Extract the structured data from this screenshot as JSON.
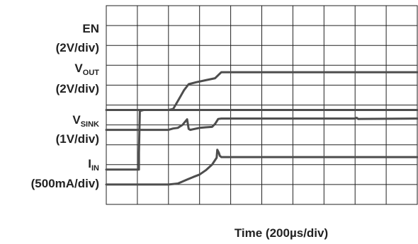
{
  "chart_data": {
    "type": "line",
    "xlabel": "Time (200µs/div)",
    "x_divisions": 10,
    "y_divisions": 10,
    "grid": true,
    "trace_color": "#4d4d4d",
    "grid_color": "#222222",
    "series": [
      {
        "name": "EN",
        "scale": "(2V/div)",
        "unit": "div",
        "points": [
          [
            0,
            1.75
          ],
          [
            1.05,
            1.75
          ],
          [
            1.05,
            2.6
          ],
          [
            1.08,
            4.7
          ],
          [
            1.2,
            4.75
          ],
          [
            10,
            4.75
          ]
        ]
      },
      {
        "name_main": "V",
        "name_sub": "OUT",
        "scale": "(2V/div)",
        "unit": "div",
        "points": [
          [
            0,
            4.75
          ],
          [
            2.0,
            4.75
          ],
          [
            2.15,
            4.8
          ],
          [
            2.3,
            5.2
          ],
          [
            2.5,
            5.75
          ],
          [
            2.65,
            6.05
          ],
          [
            2.9,
            6.15
          ],
          [
            3.2,
            6.25
          ],
          [
            3.5,
            6.35
          ],
          [
            3.6,
            6.5
          ],
          [
            3.7,
            6.65
          ],
          [
            10,
            6.65
          ]
        ]
      },
      {
        "name_main": "V",
        "name_sub": "SINK",
        "scale": "(1V/div)",
        "unit": "div",
        "points": [
          [
            0,
            3.75
          ],
          [
            2.0,
            3.75
          ],
          [
            2.15,
            3.82
          ],
          [
            2.3,
            3.85
          ],
          [
            2.45,
            4.0
          ],
          [
            2.6,
            4.28
          ],
          [
            2.65,
            3.8
          ],
          [
            2.7,
            3.75
          ],
          [
            3.0,
            3.85
          ],
          [
            3.2,
            3.88
          ],
          [
            3.4,
            3.9
          ],
          [
            3.5,
            4.05
          ],
          [
            3.6,
            4.3
          ],
          [
            3.7,
            4.32
          ],
          [
            8.0,
            4.32
          ],
          [
            8.05,
            4.36
          ],
          [
            8.1,
            4.3
          ],
          [
            10,
            4.32
          ]
        ]
      },
      {
        "name_main": "I",
        "name_sub": "IN",
        "scale": "(500mA/div)",
        "unit": "div",
        "points": [
          [
            0,
            1.0
          ],
          [
            2.0,
            1.0
          ],
          [
            2.3,
            1.05
          ],
          [
            2.6,
            1.25
          ],
          [
            2.8,
            1.38
          ],
          [
            3.0,
            1.5
          ],
          [
            3.2,
            1.72
          ],
          [
            3.4,
            2.0
          ],
          [
            3.55,
            2.35
          ],
          [
            3.57,
            2.75
          ],
          [
            3.62,
            2.6
          ],
          [
            3.65,
            2.45
          ],
          [
            3.7,
            2.38
          ],
          [
            10,
            2.38
          ]
        ]
      }
    ]
  }
}
